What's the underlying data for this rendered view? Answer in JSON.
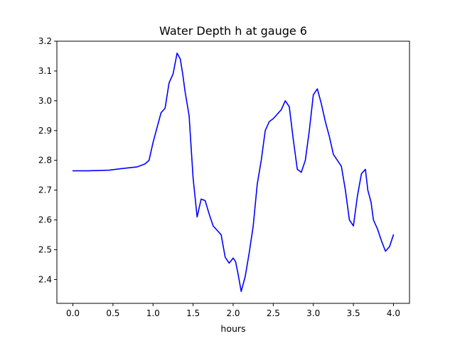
{
  "chart_data": {
    "type": "line",
    "title": "Water Depth h at gauge 6",
    "xlabel": "hours",
    "ylabel": "",
    "xlim": [
      -0.2,
      4.2
    ],
    "ylim": [
      2.32,
      3.2
    ],
    "xticks": [
      0.0,
      0.5,
      1.0,
      1.5,
      2.0,
      2.5,
      3.0,
      3.5,
      4.0
    ],
    "xtick_labels": [
      "0.0",
      "0.5",
      "1.0",
      "1.5",
      "2.0",
      "2.5",
      "3.0",
      "3.5",
      "4.0"
    ],
    "yticks": [
      2.4,
      2.5,
      2.6,
      2.7,
      2.8,
      2.9,
      3.0,
      3.1,
      3.2
    ],
    "ytick_labels": [
      "2.4",
      "2.5",
      "2.6",
      "2.7",
      "2.8",
      "2.9",
      "3.0",
      "3.1",
      "3.2"
    ],
    "grid": false,
    "series": [
      {
        "color": "#0000ff",
        "x": [
          0.0,
          0.2,
          0.45,
          0.6,
          0.8,
          0.9,
          0.95,
          1.0,
          1.05,
          1.1,
          1.15,
          1.2,
          1.25,
          1.3,
          1.34,
          1.37,
          1.4,
          1.45,
          1.5,
          1.55,
          1.6,
          1.65,
          1.7,
          1.75,
          1.8,
          1.85,
          1.9,
          1.95,
          2.0,
          2.03,
          2.06,
          2.1,
          2.15,
          2.2,
          2.25,
          2.3,
          2.35,
          2.4,
          2.45,
          2.5,
          2.55,
          2.6,
          2.65,
          2.7,
          2.75,
          2.8,
          2.85,
          2.9,
          2.95,
          3.0,
          3.05,
          3.1,
          3.15,
          3.2,
          3.25,
          3.3,
          3.35,
          3.4,
          3.45,
          3.5,
          3.55,
          3.6,
          3.65,
          3.68,
          3.72,
          3.75,
          3.8,
          3.85,
          3.9,
          3.95,
          4.0
        ],
        "y": [
          2.765,
          2.765,
          2.767,
          2.772,
          2.778,
          2.788,
          2.8,
          2.86,
          2.91,
          2.96,
          2.975,
          3.06,
          3.09,
          3.16,
          3.14,
          3.09,
          3.03,
          2.95,
          2.74,
          2.61,
          2.67,
          2.665,
          2.62,
          2.58,
          2.565,
          2.55,
          2.475,
          2.455,
          2.472,
          2.46,
          2.42,
          2.36,
          2.41,
          2.49,
          2.58,
          2.72,
          2.8,
          2.9,
          2.93,
          2.94,
          2.955,
          2.97,
          3.0,
          2.98,
          2.87,
          2.77,
          2.76,
          2.8,
          2.9,
          3.02,
          3.04,
          2.99,
          2.93,
          2.88,
          2.82,
          2.8,
          2.78,
          2.7,
          2.6,
          2.58,
          2.68,
          2.755,
          2.77,
          2.7,
          2.66,
          2.6,
          2.57,
          2.53,
          2.495,
          2.51,
          2.55
        ]
      }
    ]
  }
}
